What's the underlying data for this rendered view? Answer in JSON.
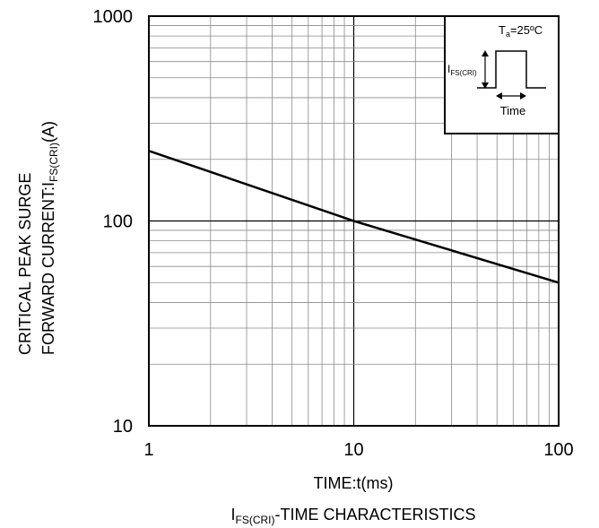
{
  "chart_data": {
    "type": "line",
    "title": "I",
    "title_sub": "FS(CRI)",
    "title_rest": "-TIME CHARACTERISTICS",
    "xlabel": "TIME:t(ms)",
    "ylabel_line1": "CRITICAL PEAK SURGE",
    "ylabel_line2": "FORWARD CURRENT:I",
    "ylabel_sub": "FS(CRI)",
    "ylabel_unit": "(A)",
    "xscale": "log",
    "yscale": "log",
    "xlim": [
      1,
      100
    ],
    "ylim": [
      10,
      1000
    ],
    "x_ticks": [
      "1",
      "10",
      "100"
    ],
    "y_ticks": [
      "10",
      "100",
      "1000"
    ],
    "grid": true,
    "series": [
      {
        "x": [
          1,
          10,
          100
        ],
        "y": [
          220,
          100,
          50
        ]
      }
    ],
    "inset": {
      "temp_main": "T",
      "temp_sub": "a",
      "temp_rest": "=25ºC",
      "pulse_main": "I",
      "pulse_sub": "FS(CRI)",
      "time_label": "Time"
    }
  }
}
